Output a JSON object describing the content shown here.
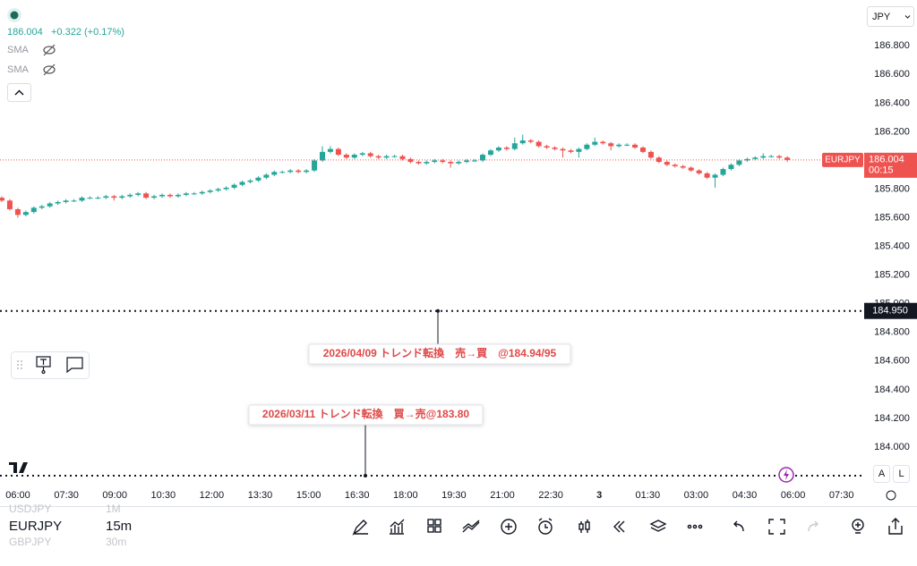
{
  "header": {
    "legend_price": "186.004",
    "legend_change": "+0.322 (+0.17%)",
    "indicators": [
      "SMA",
      "SMA"
    ],
    "currency": "JPY"
  },
  "chart_data": {
    "type": "candlestick",
    "symbol": "EURJPY",
    "up_color": "#26a69a",
    "down_color": "#ef5350",
    "candles": [
      [
        185.74,
        185.75,
        185.71,
        185.72
      ],
      [
        185.72,
        185.73,
        185.65,
        185.66
      ],
      [
        185.66,
        185.67,
        185.6,
        185.62
      ],
      [
        185.62,
        185.65,
        185.61,
        185.64
      ],
      [
        185.64,
        185.68,
        185.63,
        185.67
      ],
      [
        185.67,
        185.69,
        185.66,
        185.68
      ],
      [
        185.68,
        185.71,
        185.67,
        185.7
      ],
      [
        185.7,
        185.72,
        185.69,
        185.71
      ],
      [
        185.71,
        185.73,
        185.7,
        185.72
      ],
      [
        185.72,
        185.73,
        185.71,
        185.72
      ],
      [
        185.72,
        185.75,
        185.71,
        185.74
      ],
      [
        185.74,
        185.75,
        185.73,
        185.74
      ],
      [
        185.74,
        185.75,
        185.73,
        185.74
      ],
      [
        185.74,
        185.76,
        185.73,
        185.75
      ],
      [
        185.75,
        185.76,
        185.72,
        185.74
      ],
      [
        185.74,
        185.76,
        185.73,
        185.75
      ],
      [
        185.75,
        185.77,
        185.74,
        185.76
      ],
      [
        185.76,
        185.78,
        185.75,
        185.77
      ],
      [
        185.77,
        185.78,
        185.73,
        185.74
      ],
      [
        185.74,
        185.76,
        185.73,
        185.75
      ],
      [
        185.75,
        185.77,
        185.74,
        185.76
      ],
      [
        185.76,
        185.77,
        185.74,
        185.75
      ],
      [
        185.75,
        185.77,
        185.74,
        185.76
      ],
      [
        185.76,
        185.78,
        185.75,
        185.77
      ],
      [
        185.77,
        185.78,
        185.76,
        185.77
      ],
      [
        185.77,
        185.79,
        185.76,
        185.78
      ],
      [
        185.78,
        185.8,
        185.77,
        185.79
      ],
      [
        185.79,
        185.81,
        185.78,
        185.8
      ],
      [
        185.8,
        185.82,
        185.79,
        185.81
      ],
      [
        185.81,
        185.84,
        185.8,
        185.83
      ],
      [
        185.83,
        185.86,
        185.82,
        185.85
      ],
      [
        185.85,
        185.87,
        185.84,
        185.86
      ],
      [
        185.86,
        185.89,
        185.85,
        185.88
      ],
      [
        185.88,
        185.91,
        185.87,
        185.9
      ],
      [
        185.9,
        185.93,
        185.89,
        185.92
      ],
      [
        185.92,
        185.93,
        185.91,
        185.92
      ],
      [
        185.92,
        185.94,
        185.91,
        185.93
      ],
      [
        185.93,
        185.94,
        185.91,
        185.92
      ],
      [
        185.92,
        185.94,
        185.91,
        185.93
      ],
      [
        185.93,
        186.01,
        185.92,
        186.0
      ],
      [
        186.0,
        186.1,
        185.99,
        186.06
      ],
      [
        186.06,
        186.1,
        186.05,
        186.08
      ],
      [
        186.08,
        186.09,
        186.03,
        186.04
      ],
      [
        186.04,
        186.05,
        186.01,
        186.02
      ],
      [
        186.02,
        186.05,
        186.01,
        186.04
      ],
      [
        186.04,
        186.06,
        186.03,
        186.05
      ],
      [
        186.05,
        186.06,
        186.02,
        186.03
      ],
      [
        186.03,
        186.04,
        186.01,
        186.02
      ],
      [
        186.02,
        186.04,
        186.01,
        186.03
      ],
      [
        186.03,
        186.04,
        186.02,
        186.03
      ],
      [
        186.03,
        186.04,
        186.0,
        186.01
      ],
      [
        186.01,
        186.02,
        185.98,
        185.99
      ],
      [
        185.99,
        186.0,
        185.97,
        185.98
      ],
      [
        185.98,
        186.0,
        185.97,
        185.99
      ],
      [
        185.99,
        186.01,
        185.98,
        186.0
      ],
      [
        186.0,
        186.01,
        185.98,
        185.99
      ],
      [
        185.99,
        186.0,
        185.95,
        185.98
      ],
      [
        185.98,
        186.0,
        185.97,
        185.99
      ],
      [
        185.99,
        186.01,
        185.98,
        186.0
      ],
      [
        186.0,
        186.01,
        185.99,
        186.0
      ],
      [
        186.0,
        186.05,
        185.99,
        186.04
      ],
      [
        186.04,
        186.08,
        186.03,
        186.07
      ],
      [
        186.07,
        186.1,
        186.06,
        186.09
      ],
      [
        186.09,
        186.1,
        186.07,
        186.08
      ],
      [
        186.08,
        186.16,
        186.07,
        186.12
      ],
      [
        186.12,
        186.18,
        186.11,
        186.14
      ],
      [
        186.14,
        186.15,
        186.12,
        186.13
      ],
      [
        186.13,
        186.14,
        186.09,
        186.1
      ],
      [
        186.1,
        186.11,
        186.08,
        186.09
      ],
      [
        186.09,
        186.1,
        186.07,
        186.08
      ],
      [
        186.08,
        186.09,
        186.02,
        186.07
      ],
      [
        186.07,
        186.08,
        186.05,
        186.06
      ],
      [
        186.06,
        186.09,
        186.02,
        186.08
      ],
      [
        186.08,
        186.12,
        186.07,
        186.11
      ],
      [
        186.11,
        186.16,
        186.1,
        186.13
      ],
      [
        186.13,
        186.14,
        186.11,
        186.12
      ],
      [
        186.12,
        186.13,
        186.07,
        186.1
      ],
      [
        186.1,
        186.12,
        186.09,
        186.11
      ],
      [
        186.11,
        186.12,
        186.1,
        186.11
      ],
      [
        186.11,
        186.12,
        186.08,
        186.09
      ],
      [
        186.09,
        186.1,
        186.05,
        186.06
      ],
      [
        186.06,
        186.07,
        186.01,
        186.02
      ],
      [
        186.02,
        186.03,
        185.98,
        185.99
      ],
      [
        185.99,
        186.0,
        185.96,
        185.97
      ],
      [
        185.97,
        185.98,
        185.95,
        185.96
      ],
      [
        185.96,
        185.97,
        185.94,
        185.95
      ],
      [
        185.95,
        185.96,
        185.92,
        185.93
      ],
      [
        185.93,
        185.94,
        185.9,
        185.91
      ],
      [
        185.91,
        185.92,
        185.87,
        185.88
      ],
      [
        185.88,
        185.91,
        185.81,
        185.9
      ],
      [
        185.9,
        185.95,
        185.89,
        185.94
      ],
      [
        185.94,
        185.98,
        185.93,
        185.97
      ],
      [
        185.97,
        186.01,
        185.96,
        186.0
      ],
      [
        186.0,
        186.02,
        185.99,
        186.01
      ],
      [
        186.01,
        186.03,
        186.0,
        186.02
      ],
      [
        186.02,
        186.05,
        186.01,
        186.03
      ],
      [
        186.03,
        186.04,
        186.02,
        186.03
      ],
      [
        186.03,
        186.04,
        186.01,
        186.02
      ],
      [
        186.02,
        186.03,
        185.99,
        186.004
      ]
    ],
    "ylim": [
      183.75,
      187.12
    ],
    "yticks": [
      {
        "value": 186.8,
        "label": "186.800"
      },
      {
        "value": 186.6,
        "label": "186.600"
      },
      {
        "value": 186.4,
        "label": "186.400"
      },
      {
        "value": 186.2,
        "label": "186.200"
      },
      {
        "value": 186.0,
        "label": "186.000"
      },
      {
        "value": 185.8,
        "label": "185.800"
      },
      {
        "value": 185.6,
        "label": "185.600"
      },
      {
        "value": 185.4,
        "label": "185.400"
      },
      {
        "value": 185.2,
        "label": "185.200"
      },
      {
        "value": 185.0,
        "label": "185.000"
      },
      {
        "value": 184.8,
        "label": "184.800"
      },
      {
        "value": 184.6,
        "label": "184.600"
      },
      {
        "value": 184.4,
        "label": "184.400"
      },
      {
        "value": 184.2,
        "label": "184.200"
      },
      {
        "value": 184.0,
        "label": "184.000"
      }
    ],
    "xticks": [
      "06:00",
      "07:30",
      "09:00",
      "10:30",
      "12:00",
      "13:30",
      "15:00",
      "16:30",
      "18:00",
      "19:30",
      "21:00",
      "22:30",
      "3",
      "01:30",
      "03:00",
      "04:30",
      "06:00",
      "07:30"
    ],
    "last_price": 186.004,
    "countdown": "00:15",
    "hlines": [
      {
        "value": 184.95,
        "label": "184.950"
      },
      {
        "value": 183.8
      }
    ],
    "annotations": [
      {
        "text": "2026/04/09 トレンド転換　売→買　@184.94/95",
        "value": 184.95
      },
      {
        "text": "2026/03/11 トレンド転換　買→売@183.80",
        "value": 183.8
      }
    ]
  },
  "footer": {
    "symbols": [
      "USDJPY",
      "EURJPY",
      "GBPJPY"
    ],
    "intervals": [
      "1M",
      "15m",
      "30m"
    ],
    "scale_buttons": [
      "A",
      "L"
    ]
  }
}
